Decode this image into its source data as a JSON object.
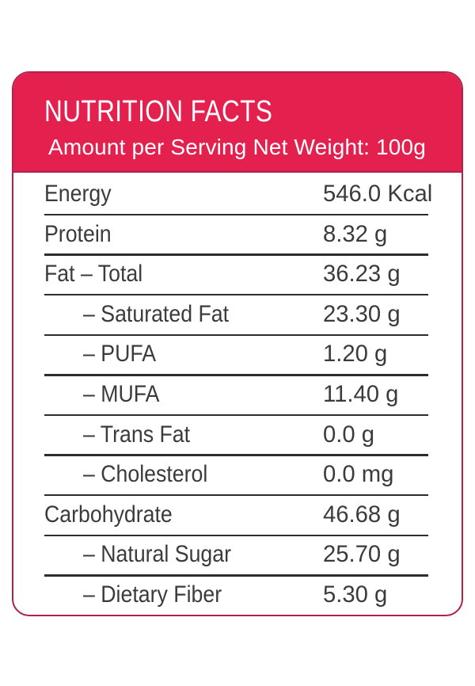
{
  "colors": {
    "page_bg": "#ffffff",
    "header_bg": "#e3204e",
    "card_border": "#af2148",
    "header_text": "#ffffff",
    "text": "#3b3b3b",
    "divider": "#2d2d2d"
  },
  "header": {
    "title": "NUTRITION FACTS",
    "subtitle": "Amount per Serving Net Weight: 100g"
  },
  "table": {
    "rows": [
      {
        "label": "Energy",
        "value": "546.0 Kcal",
        "indent": false
      },
      {
        "label": "Protein",
        "value": "8.32 g",
        "indent": false
      },
      {
        "label": "Fat – Total",
        "value": "36.23 g",
        "indent": false
      },
      {
        "label": "– Saturated Fat",
        "value": "23.30 g",
        "indent": true
      },
      {
        "label": "– PUFA",
        "value": "1.20 g",
        "indent": true
      },
      {
        "label": "– MUFA",
        "value": "11.40 g",
        "indent": true
      },
      {
        "label": "– Trans Fat",
        "value": "0.0 g",
        "indent": true
      },
      {
        "label": "– Cholesterol",
        "value": "0.0 mg",
        "indent": true
      },
      {
        "label": "Carbohydrate",
        "value": "46.68 g",
        "indent": false
      },
      {
        "label": "– Natural Sugar",
        "value": "25.70 g",
        "indent": true
      },
      {
        "label": "– Dietary Fiber",
        "value": "5.30 g",
        "indent": true
      }
    ]
  }
}
